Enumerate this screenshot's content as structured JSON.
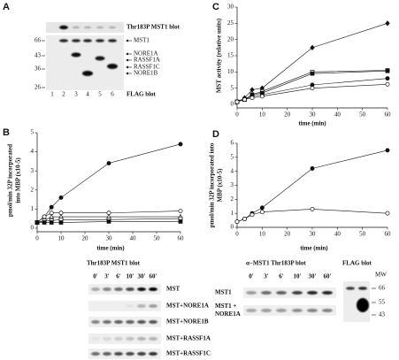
{
  "blot_a": {
    "panel": "A",
    "top_label": "Thr183P MST1 blot",
    "mw": [
      66,
      43,
      36,
      26
    ],
    "lanes": [
      "1",
      "2",
      "3",
      "4",
      "5",
      "6"
    ],
    "bands": [
      "MST1",
      "NORE1A",
      "RASSF1A",
      "RASSF1C",
      "NORE1B"
    ],
    "bottom_label": "FLAG blot"
  },
  "blot_b": {
    "title": "Thr183P MST1 blot",
    "times": [
      "0'",
      "3'",
      "6'",
      "10'",
      "30'",
      "60'"
    ],
    "rows": [
      "MST",
      "MST+NORE1A",
      "MST+NORE1B",
      "MST+RASSF1A",
      "MST+RASSF1C"
    ]
  },
  "blot_d": {
    "title": "α−MST1 Thr183P blot",
    "times": [
      "0'",
      "3'",
      "6'",
      "10'",
      "30'",
      "60'"
    ],
    "rows": [
      [
        "MST1"
      ],
      [
        "MST1 +",
        "NORE1A"
      ]
    ],
    "flag_title": "FLAG blot",
    "mw_title": "MW",
    "mw": [
      66,
      55,
      43
    ]
  },
  "chart_data": [
    {
      "type": "line",
      "panel": "B",
      "xlabel": "time (min)",
      "ylabel": [
        "pmol/min 32P incorporated",
        "into MBP (x10-5)"
      ],
      "x": [
        0,
        3,
        6,
        10,
        30,
        60
      ],
      "xlim": [
        0,
        60
      ],
      "ylim": [
        0,
        5
      ],
      "xticks": [
        0,
        10,
        20,
        30,
        40,
        50,
        60
      ],
      "yticks": [
        0,
        1,
        2,
        3,
        4,
        5
      ],
      "series": [
        {
          "marker": "circle",
          "filled": true,
          "color": "#111",
          "values": [
            0.3,
            0.6,
            1.1,
            1.6,
            3.4,
            4.4
          ]
        },
        {
          "marker": "circle",
          "filled": false,
          "color": "#111",
          "values": [
            0.3,
            0.6,
            0.8,
            0.8,
            0.8,
            0.9
          ]
        },
        {
          "marker": "triangle",
          "filled": false,
          "color": "#111",
          "values": [
            0.3,
            0.4,
            0.6,
            0.6,
            0.6,
            0.6
          ]
        },
        {
          "marker": "square",
          "filled": false,
          "color": "#111",
          "values": [
            0.3,
            0.4,
            0.4,
            0.45,
            0.45,
            0.5
          ]
        },
        {
          "marker": "square",
          "filled": true,
          "color": "#111",
          "values": [
            0.3,
            0.3,
            0.3,
            0.3,
            0.35,
            0.35
          ]
        }
      ]
    },
    {
      "type": "line",
      "panel": "C",
      "xlabel": "time (min)",
      "ylabel": [
        "MST activity (relative units)"
      ],
      "x": [
        0,
        3,
        6,
        10,
        30,
        60
      ],
      "xlim": [
        0,
        60
      ],
      "ylim": [
        0,
        30
      ],
      "xticks": [
        0,
        10,
        20,
        30,
        40,
        50,
        60
      ],
      "yticks": [
        0,
        5,
        10,
        15,
        20,
        25,
        30
      ],
      "series": [
        {
          "marker": "diamond",
          "filled": true,
          "color": "#111",
          "values": [
            0.8,
            2,
            4.5,
            5,
            17.5,
            25
          ]
        },
        {
          "marker": "square",
          "filled": false,
          "color": "#111",
          "values": [
            0.8,
            1.5,
            3,
            4,
            10,
            10.5
          ]
        },
        {
          "marker": "square",
          "filled": true,
          "color": "#111",
          "values": [
            0.8,
            1.5,
            3,
            3.5,
            9.5,
            10.3
          ]
        },
        {
          "marker": "circle",
          "filled": true,
          "color": "#111",
          "values": [
            0.8,
            1.5,
            2.5,
            3,
            6,
            8
          ]
        },
        {
          "marker": "circle",
          "filled": false,
          "color": "#111",
          "values": [
            0.8,
            1.5,
            2,
            2.5,
            5,
            6.2
          ]
        }
      ]
    },
    {
      "type": "line",
      "panel": "D",
      "xlabel": "time (min)",
      "ylabel": [
        "pmol/min 32P incorporated into",
        "MBP (x10-5)"
      ],
      "x": [
        0,
        3,
        6,
        10,
        30,
        60
      ],
      "xlim": [
        0,
        60
      ],
      "ylim": [
        0,
        6
      ],
      "xticks": [
        0,
        10,
        20,
        30,
        40,
        50,
        60
      ],
      "yticks": [
        0,
        1,
        2,
        3,
        4,
        5,
        6
      ],
      "series": [
        {
          "marker": "circle",
          "filled": true,
          "color": "#111",
          "values": [
            0.4,
            0.6,
            1,
            1.4,
            4.2,
            5.5
          ]
        },
        {
          "marker": "circle",
          "filled": false,
          "color": "#111",
          "values": [
            0.4,
            0.6,
            0.9,
            1.1,
            1.3,
            1
          ]
        }
      ]
    }
  ]
}
